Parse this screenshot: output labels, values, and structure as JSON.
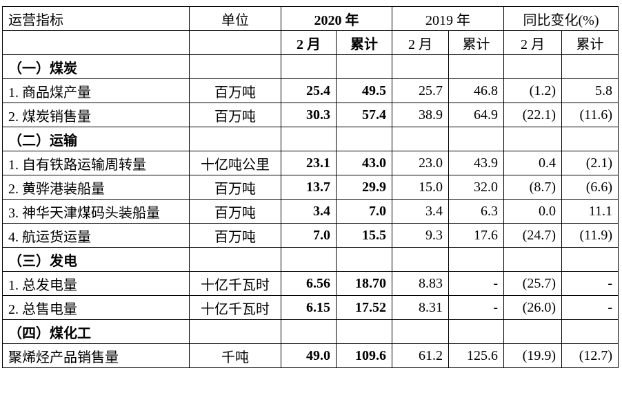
{
  "header": {
    "indicator": "运营指标",
    "unit": "单位",
    "year2020": "2020 年",
    "year2019": "2019 年",
    "yoy": "同比变化(%)",
    "feb": "2 月",
    "cumulative": "累计"
  },
  "sections": [
    {
      "title": "（一）煤炭",
      "rows": [
        {
          "name": "1. 商品煤产量",
          "unit": "百万吨",
          "feb2020": "25.4",
          "cum2020": "49.5",
          "feb2019": "25.7",
          "cum2019": "46.8",
          "feb_yoy": "(1.2)",
          "cum_yoy": "5.8"
        },
        {
          "name": "2. 煤炭销售量",
          "unit": "百万吨",
          "feb2020": "30.3",
          "cum2020": "57.4",
          "feb2019": "38.9",
          "cum2019": "64.9",
          "feb_yoy": "(22.1)",
          "cum_yoy": "(11.6)"
        }
      ]
    },
    {
      "title": "（二）运输",
      "rows": [
        {
          "name": "1. 自有铁路运输周转量",
          "unit": "十亿吨公里",
          "feb2020": "23.1",
          "cum2020": "43.0",
          "feb2019": "23.0",
          "cum2019": "43.9",
          "feb_yoy": "0.4",
          "cum_yoy": "(2.1)"
        },
        {
          "name": "2. 黄骅港装船量",
          "unit": "百万吨",
          "feb2020": "13.7",
          "cum2020": "29.9",
          "feb2019": "15.0",
          "cum2019": "32.0",
          "feb_yoy": "(8.7)",
          "cum_yoy": "(6.6)"
        },
        {
          "name": "3. 神华天津煤码头装船量",
          "unit": "百万吨",
          "feb2020": "3.4",
          "cum2020": "7.0",
          "feb2019": "3.4",
          "cum2019": "6.3",
          "feb_yoy": "0.0",
          "cum_yoy": "11.1"
        },
        {
          "name": "4. 航运货运量",
          "unit": "百万吨",
          "feb2020": "7.0",
          "cum2020": "15.5",
          "feb2019": "9.3",
          "cum2019": "17.6",
          "feb_yoy": "(24.7)",
          "cum_yoy": "(11.9)"
        }
      ]
    },
    {
      "title": "（三）发电",
      "rows": [
        {
          "name": "1. 总发电量",
          "unit": "十亿千瓦时",
          "feb2020": "6.56",
          "cum2020": "18.70",
          "feb2019": "8.83",
          "cum2019": "-",
          "feb_yoy": "(25.7)",
          "cum_yoy": "-"
        },
        {
          "name": "2. 总售电量",
          "unit": "十亿千瓦时",
          "feb2020": "6.15",
          "cum2020": "17.52",
          "feb2019": "8.31",
          "cum2019": "-",
          "feb_yoy": "(26.0)",
          "cum_yoy": "-"
        }
      ]
    },
    {
      "title": "（四）煤化工",
      "rows": [
        {
          "name": "聚烯烃产品销售量",
          "unit": "千吨",
          "feb2020": "49.0",
          "cum2020": "109.6",
          "feb2019": "61.2",
          "cum2019": "125.6",
          "feb_yoy": "(19.9)",
          "cum_yoy": "(12.7)"
        }
      ]
    }
  ]
}
